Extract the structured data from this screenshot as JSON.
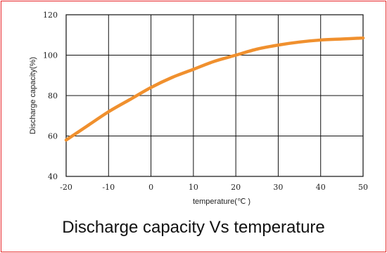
{
  "chart_data": {
    "type": "line",
    "title": "Discharge capacity Vs temperature",
    "xlabel": "temperature(℃ )",
    "ylabel": "Discharge capacity(%)",
    "xlim": [
      -20,
      50
    ],
    "ylim": [
      40,
      120
    ],
    "x_ticks": [
      "-20",
      "-10",
      "0",
      "10",
      "20",
      "30",
      "40",
      "50"
    ],
    "y_ticks": [
      "40",
      "60",
      "80",
      "100",
      "120"
    ],
    "grid": true,
    "series": [
      {
        "color": "#f0902e",
        "x": [
          -20,
          -15,
          -10,
          -5,
          0,
          5,
          10,
          15,
          20,
          25,
          30,
          35,
          40,
          45,
          50
        ],
        "y": [
          58,
          65,
          72,
          78,
          84,
          89,
          93,
          97,
          100,
          103,
          105,
          106.5,
          107.5,
          108,
          108.5
        ]
      }
    ]
  }
}
